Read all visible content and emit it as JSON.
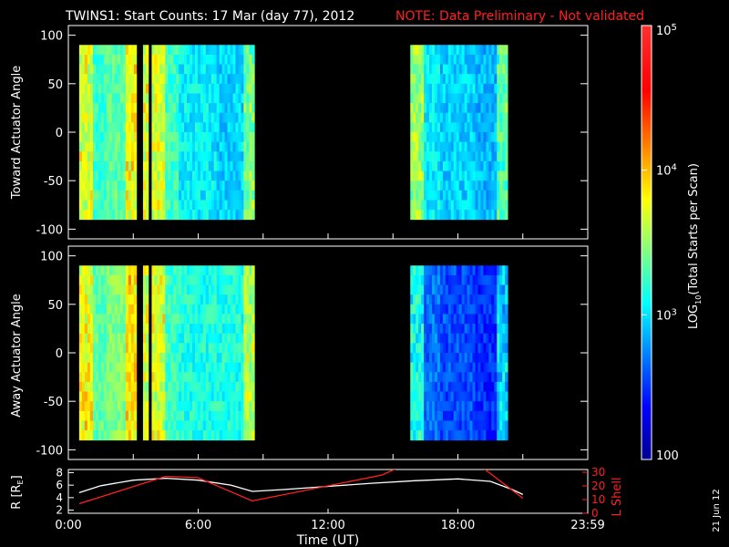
{
  "title": "TWINS1: Start Counts: 17 Mar (day  77), 2012",
  "note": "NOTE: Data Preliminary - Not validated",
  "date_stamp": "21 Jun 12",
  "colors": {
    "background": "#000000",
    "axis": "#ffffff",
    "note": "#ff2020",
    "r_line": "#ffffff",
    "lshell_line": "#ff2020"
  },
  "chart_data": [
    {
      "type": "heatmap",
      "ylabel": "Toward Actuator Angle",
      "ylim": [
        -110,
        110
      ],
      "yticks": [
        -100,
        -50,
        0,
        50,
        100
      ],
      "xlim": [
        0,
        24
      ],
      "data_y_range": [
        -90,
        90
      ],
      "data_x_segments": [
        [
          0.5,
          3.15
        ],
        [
          3.45,
          3.7
        ],
        [
          3.85,
          8.6
        ],
        [
          15.8,
          20.3
        ]
      ],
      "colorscale": "jet-log",
      "mean_counts_log10": [
        3.3,
        3.4,
        3.3,
        3.1,
        3.0,
        3.0,
        3.0,
        3.1,
        3.4,
        3.1,
        3.0,
        2.9,
        2.9,
        3.4
      ],
      "grid": false
    },
    {
      "type": "heatmap",
      "ylabel": "Away Actuator Angle",
      "ylim": [
        -110,
        110
      ],
      "yticks": [
        -100,
        -50,
        0,
        50,
        100
      ],
      "xlim": [
        0,
        24
      ],
      "data_y_range": [
        -90,
        90
      ],
      "data_x_segments": [
        [
          0.5,
          3.15
        ],
        [
          3.45,
          3.7
        ],
        [
          3.85,
          8.6
        ],
        [
          15.8,
          20.3
        ]
      ],
      "colorscale": "jet-log",
      "mean_counts_log10": [
        3.4,
        3.5,
        3.3,
        3.2,
        3.2,
        3.1,
        3.2,
        3.2,
        3.4,
        2.7,
        2.6,
        2.5,
        2.6,
        3.6
      ],
      "grid": false
    },
    {
      "type": "line",
      "ylabel_left": "R [R",
      "ylabel_left_sub": "E",
      "ylabel_left_end": "]",
      "ylabel_right": "L Shell",
      "xlabel": "Time (UT)",
      "xlim": [
        0,
        24
      ],
      "xticks": [
        0,
        6,
        12,
        18,
        24
      ],
      "xtick_labels": [
        "0:00",
        "6:00",
        "12:00",
        "18:00",
        "23:59"
      ],
      "left_ylim": [
        1.5,
        8.5
      ],
      "left_yticks": [
        2,
        4,
        6,
        8
      ],
      "right_ylim": [
        0,
        32
      ],
      "right_yticks": [
        0,
        10,
        20,
        30
      ],
      "series": [
        {
          "axis": "left",
          "color": "#ffffff",
          "x": [
            0.5,
            1.5,
            3.0,
            4.5,
            6.0,
            7.5,
            8.5,
            10.0,
            12.0,
            14.0,
            16.0,
            18.0,
            19.5,
            20.5,
            21.0
          ],
          "y": [
            4.8,
            5.9,
            6.8,
            7.1,
            6.8,
            6.0,
            5.0,
            5.3,
            5.8,
            6.3,
            6.7,
            7.0,
            6.6,
            5.3,
            4.5
          ]
        },
        {
          "axis": "right",
          "color": "#ff2020",
          "x": [
            0.5,
            4.5,
            6.0,
            8.5,
            14.5,
            17.0,
            19.0,
            21.0
          ],
          "y": [
            7,
            27,
            26,
            9,
            28,
            46,
            35,
            11
          ]
        }
      ]
    }
  ],
  "colorbar": {
    "label": "LOG",
    "label_sub": "10",
    "label_end": "(Total Starts per Scan)",
    "range_log10": [
      2,
      5
    ],
    "ticks": [
      {
        "value": 5,
        "base": "10",
        "exp": "5"
      },
      {
        "value": 4,
        "base": "10",
        "exp": "4"
      },
      {
        "value": 3,
        "base": "10",
        "exp": "3"
      },
      {
        "value": 2,
        "base": "100",
        "exp": ""
      }
    ]
  }
}
